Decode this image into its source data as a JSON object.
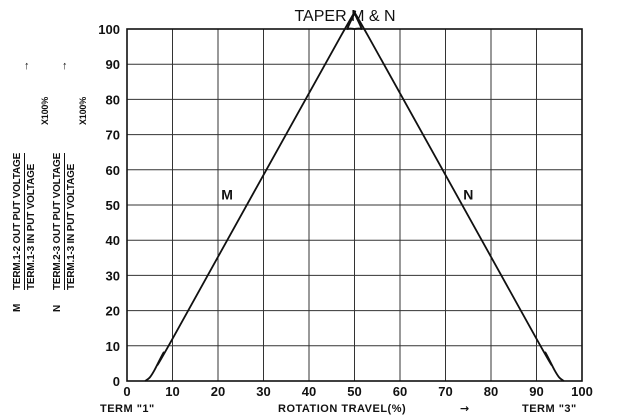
{
  "chart_data": {
    "type": "line",
    "title": "TAPER  M & N",
    "xlim": [
      0,
      100
    ],
    "ylim": [
      0,
      100
    ],
    "x_ticks": [
      "0",
      "10",
      "20",
      "30",
      "40",
      "50",
      "60",
      "70",
      "80",
      "90",
      "100"
    ],
    "y_ticks": [
      "0",
      "10",
      "20",
      "30",
      "40",
      "50",
      "60",
      "70",
      "80",
      "90",
      "100"
    ],
    "grid": true,
    "series": [
      {
        "name": "M",
        "x": [
          4,
          5,
          6,
          8,
          10,
          47,
          48.5,
          50
        ],
        "y": [
          0,
          1,
          3,
          8,
          12,
          98,
          100,
          100
        ]
      },
      {
        "name": "N",
        "x": [
          50,
          51.5,
          53,
          90,
          92,
          94,
          95,
          96
        ],
        "y": [
          100,
          100,
          98,
          12,
          8,
          3,
          1,
          0
        ]
      }
    ],
    "xlabel": "ROTATION TRAVEL(%)",
    "xlabel_left": "TERM \"1\"",
    "xlabel_right": "TERM \"3\"",
    "ylabel_m": {
      "prefix": "M",
      "numerator": "TERM.1-2 OUT PUT VOLTAGE",
      "denominator": "TERM.1-3 IN PUT VOLTAGE",
      "multiplier": "X100%"
    },
    "ylabel_n": {
      "prefix": "N",
      "numerator": "TERM.2-3 OUT PUT VOLTAGE",
      "denominator": "TERM.1-3 IN PUT VOLTAGE",
      "multiplier": "X100%"
    }
  }
}
